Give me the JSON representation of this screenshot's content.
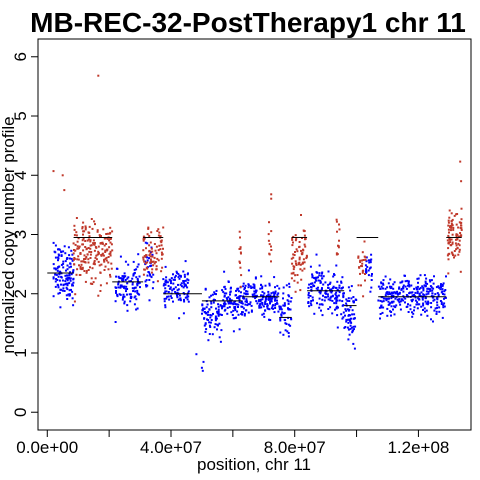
{
  "chart_data": {
    "type": "scatter",
    "title": "MB-REC-32-PostTherapy1 chr 11",
    "xlabel": "position, chr 11",
    "ylabel": "normalized copy number profile",
    "xlim": [
      -3000000,
      137000000
    ],
    "ylim": [
      -0.3,
      6.3
    ],
    "x_ticks": [
      {
        "value": 0,
        "label": "0.0e+00"
      },
      {
        "value": 20000000,
        "label": ""
      },
      {
        "value": 40000000,
        "label": "4.0e+07"
      },
      {
        "value": 60000000,
        "label": ""
      },
      {
        "value": 80000000,
        "label": "8.0e+07"
      },
      {
        "value": 100000000,
        "label": ""
      },
      {
        "value": 120000000,
        "label": "1.2e+08"
      }
    ],
    "y_ticks": [
      {
        "value": 0,
        "label": "0"
      },
      {
        "value": 1,
        "label": "1"
      },
      {
        "value": 2,
        "label": "2"
      },
      {
        "value": 3,
        "label": "3"
      },
      {
        "value": 4,
        "label": "4"
      },
      {
        "value": 5,
        "label": "5"
      },
      {
        "value": 6,
        "label": "6"
      }
    ],
    "colors": {
      "normal": "#0000ff",
      "gain": "#c0392b",
      "segment": "#000000"
    },
    "series": [
      {
        "color": "#0000ff",
        "clusters": [
          {
            "x": [
              2000000,
              8500000
            ],
            "y": 2.35,
            "spread": 0.24,
            "n": 130
          },
          {
            "x": [
              22000000,
              30000000
            ],
            "y": 2.15,
            "spread": 0.18,
            "n": 110
          },
          {
            "x": [
              31500000,
              34500000
            ],
            "y": 2.4,
            "spread": 0.2,
            "n": 35
          },
          {
            "x": [
              37500000,
              46000000
            ],
            "y": 2.08,
            "spread": 0.17,
            "n": 110
          },
          {
            "x": [
              50000000,
              56500000
            ],
            "y": 1.65,
            "spread": 0.18,
            "n": 90
          },
          {
            "x": [
              56500000,
              63000000
            ],
            "y": 1.85,
            "spread": 0.17,
            "n": 90
          },
          {
            "x": [
              63000000,
              75000000
            ],
            "y": 1.92,
            "spread": 0.15,
            "n": 170
          },
          {
            "x": [
              75000000,
              79000000
            ],
            "y": 1.7,
            "spread": 0.2,
            "n": 50
          },
          {
            "x": [
              84000000,
              89000000
            ],
            "y": 2.1,
            "spread": 0.22,
            "n": 70
          },
          {
            "x": [
              89000000,
              96000000
            ],
            "y": 2.0,
            "spread": 0.2,
            "n": 90
          },
          {
            "x": [
              96000000,
              100000000
            ],
            "y": 1.65,
            "spread": 0.22,
            "n": 60
          },
          {
            "x": [
              103000000,
              105000000
            ],
            "y": 2.3,
            "spread": 0.2,
            "n": 25
          },
          {
            "x": [
              107000000,
              129000000
            ],
            "y": 1.95,
            "spread": 0.16,
            "n": 300
          }
        ]
      },
      {
        "color": "#c0392b",
        "clusters": [
          {
            "x": [
              8500000,
              21000000
            ],
            "y": 2.7,
            "spread": 0.25,
            "n": 200
          },
          {
            "x": [
              31000000,
              37500000
            ],
            "y": 2.68,
            "spread": 0.22,
            "n": 80
          },
          {
            "x": [
              62000000,
              62800000
            ],
            "y": 2.7,
            "spread": 0.25,
            "n": 12
          },
          {
            "x": [
              71500000,
              72500000
            ],
            "y": 2.9,
            "spread": 0.3,
            "n": 12
          },
          {
            "x": [
              79000000,
              84000000
            ],
            "y": 2.65,
            "spread": 0.25,
            "n": 70
          },
          {
            "x": [
              93500000,
              94500000
            ],
            "y": 2.8,
            "spread": 0.25,
            "n": 12
          },
          {
            "x": [
              100500000,
              103000000
            ],
            "y": 2.4,
            "spread": 0.22,
            "n": 25
          },
          {
            "x": [
              129500000,
              134000000
            ],
            "y": 2.95,
            "spread": 0.25,
            "n": 90
          }
        ]
      }
    ],
    "outliers": [
      {
        "x": 16500000,
        "y": 5.68,
        "color": "#c0392b"
      },
      {
        "x": 2000000,
        "y": 4.07,
        "color": "#c0392b"
      },
      {
        "x": 5000000,
        "y": 4.0,
        "color": "#c0392b"
      },
      {
        "x": 5500000,
        "y": 3.75,
        "color": "#c0392b"
      },
      {
        "x": 133500000,
        "y": 4.23,
        "color": "#c0392b"
      },
      {
        "x": 133800000,
        "y": 3.9,
        "color": "#c0392b"
      },
      {
        "x": 50000000,
        "y": 0.75,
        "color": "#0000ff"
      },
      {
        "x": 50300000,
        "y": 0.7,
        "color": "#0000ff"
      },
      {
        "x": 48200000,
        "y": 0.98,
        "color": "#0000ff"
      },
      {
        "x": 50500000,
        "y": 0.85,
        "color": "#0000ff"
      }
    ],
    "segments": [
      {
        "x": [
          0,
          8500000
        ],
        "y": 2.35
      },
      {
        "x": [
          8500000,
          21000000
        ],
        "y": 2.95
      },
      {
        "x": [
          21000000,
          31000000
        ],
        "y": 2.2
      },
      {
        "x": [
          31000000,
          37500000
        ],
        "y": 2.95
      },
      {
        "x": [
          37500000,
          50000000
        ],
        "y": 2.0
      },
      {
        "x": [
          50000000,
          63000000
        ],
        "y": 1.88
      },
      {
        "x": [
          63000000,
          75000000
        ],
        "y": 1.95
      },
      {
        "x": [
          75000000,
          79000000
        ],
        "y": 1.6
      },
      {
        "x": [
          79000000,
          84000000
        ],
        "y": 2.95
      },
      {
        "x": [
          84000000,
          96000000
        ],
        "y": 2.05
      },
      {
        "x": [
          96000000,
          100000000
        ],
        "y": 1.8
      },
      {
        "x": [
          100000000,
          107000000
        ],
        "y": 2.95
      },
      {
        "x": [
          107000000,
          129000000
        ],
        "y": 1.95
      },
      {
        "x": [
          129000000,
          134000000
        ],
        "y": 2.95
      }
    ],
    "grid": false
  }
}
